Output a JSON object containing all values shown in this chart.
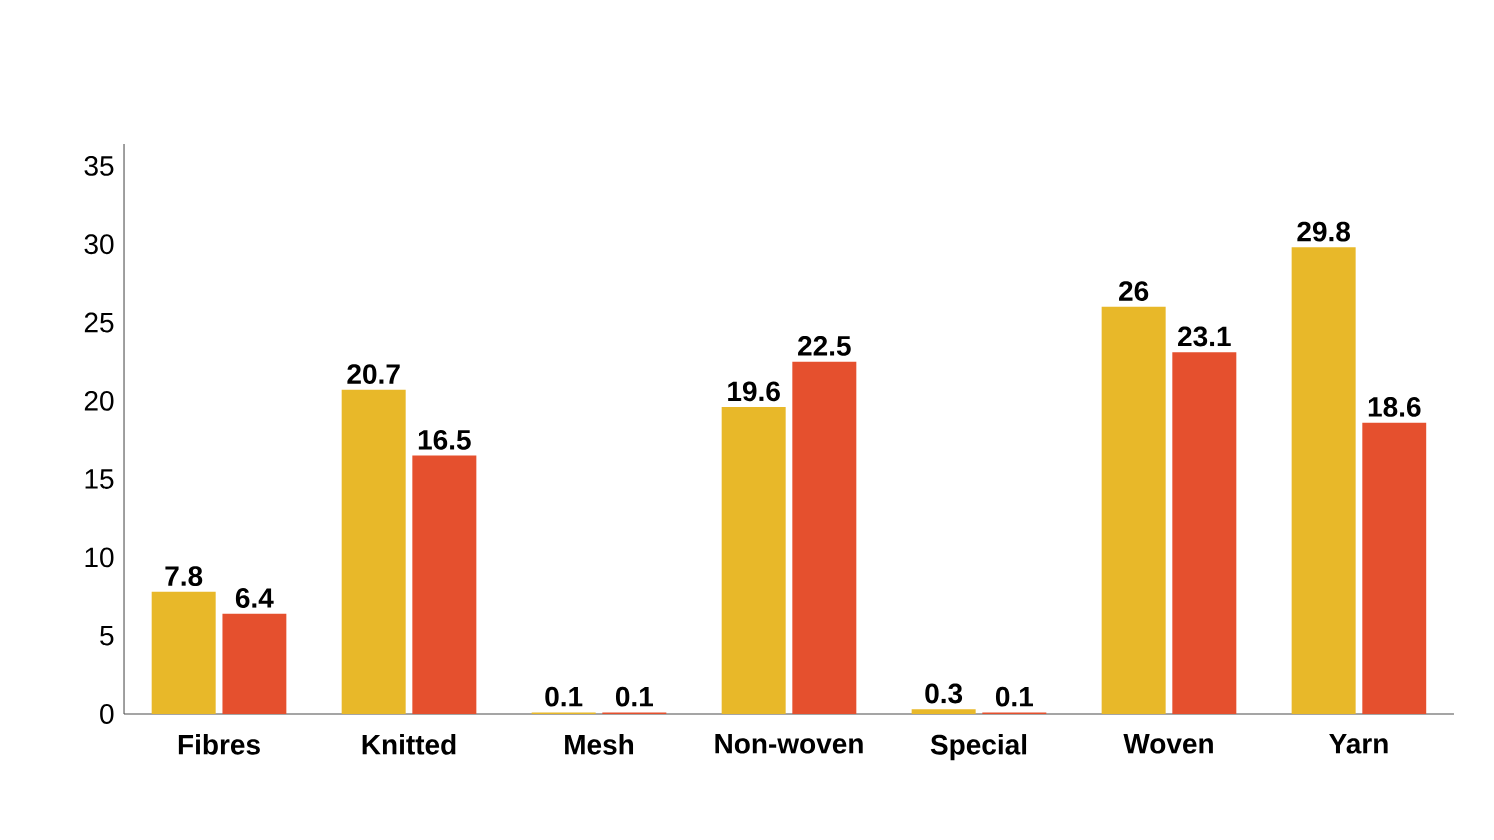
{
  "chart_data": {
    "type": "bar",
    "categories": [
      "Fibres",
      "Knitted",
      "Mesh",
      "Non-woven",
      "Special",
      "Woven",
      "Yarn"
    ],
    "series": [
      {
        "color": "#e8b829",
        "values": [
          7.8,
          20.7,
          0.1,
          19.6,
          0.3,
          26,
          29.8
        ]
      },
      {
        "color": "#e5502e",
        "values": [
          6.4,
          16.5,
          0.1,
          22.5,
          0.1,
          23.1,
          18.6
        ]
      }
    ],
    "ylim": [
      0,
      36.4
    ],
    "yticks": [
      0,
      5,
      10,
      15,
      20,
      25,
      30,
      35
    ],
    "grid": false,
    "data_labels": true
  }
}
